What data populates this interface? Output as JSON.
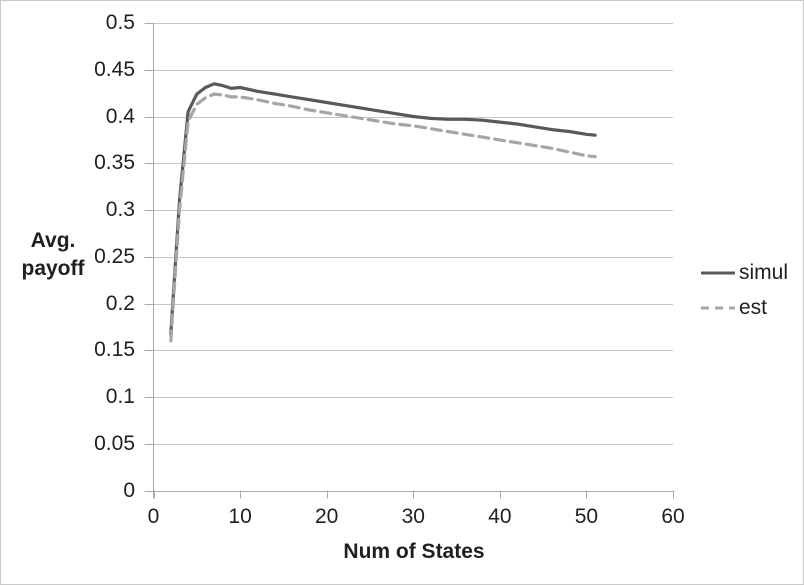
{
  "figure": {
    "background": "#ffffff",
    "border_color": "#c9c9c9"
  },
  "chart_data": {
    "type": "line",
    "title": "",
    "xlabel": "Num of States",
    "ylabel": "Avg. payoff",
    "ylabel_lines": [
      "Avg.",
      "payoff"
    ],
    "xlim": [
      0,
      60
    ],
    "ylim": [
      0,
      0.5
    ],
    "x_ticks": [
      0,
      10,
      20,
      30,
      40,
      50,
      60
    ],
    "x_tick_labels": [
      "0",
      "10",
      "20",
      "30",
      "40",
      "50",
      "60"
    ],
    "y_ticks": [
      0,
      0.05,
      0.1,
      0.15,
      0.2,
      0.25,
      0.3,
      0.35,
      0.4,
      0.45,
      0.5
    ],
    "y_tick_labels": [
      "0",
      "0.05",
      "0.1",
      "0.15",
      "0.2",
      "0.25",
      "0.3",
      "0.35",
      "0.4",
      "0.45",
      "0.5"
    ],
    "grid": "horizontal",
    "grid_color": "#c6c6c6",
    "axis_color": "#ababab",
    "legend_position": "right",
    "x": [
      2,
      3,
      4,
      5,
      6,
      7,
      8,
      9,
      10,
      12,
      14,
      16,
      18,
      20,
      22,
      24,
      26,
      28,
      30,
      32,
      34,
      36,
      38,
      40,
      42,
      44,
      46,
      48,
      50,
      51
    ],
    "series": [
      {
        "name": "simul",
        "color": "#595959",
        "style": "solid",
        "values": [
          0.167,
          0.31,
          0.405,
          0.424,
          0.431,
          0.435,
          0.433,
          0.43,
          0.431,
          0.427,
          0.424,
          0.421,
          0.418,
          0.415,
          0.412,
          0.409,
          0.406,
          0.403,
          0.4,
          0.398,
          0.397,
          0.397,
          0.396,
          0.394,
          0.392,
          0.389,
          0.386,
          0.384,
          0.381,
          0.38
        ]
      },
      {
        "name": "est",
        "color": "#a6a6a6",
        "style": "dashed",
        "values": [
          0.16,
          0.3,
          0.395,
          0.413,
          0.42,
          0.424,
          0.423,
          0.421,
          0.421,
          0.418,
          0.414,
          0.411,
          0.407,
          0.404,
          0.401,
          0.398,
          0.395,
          0.392,
          0.39,
          0.387,
          0.384,
          0.381,
          0.378,
          0.375,
          0.372,
          0.369,
          0.366,
          0.362,
          0.358,
          0.357
        ]
      }
    ]
  }
}
